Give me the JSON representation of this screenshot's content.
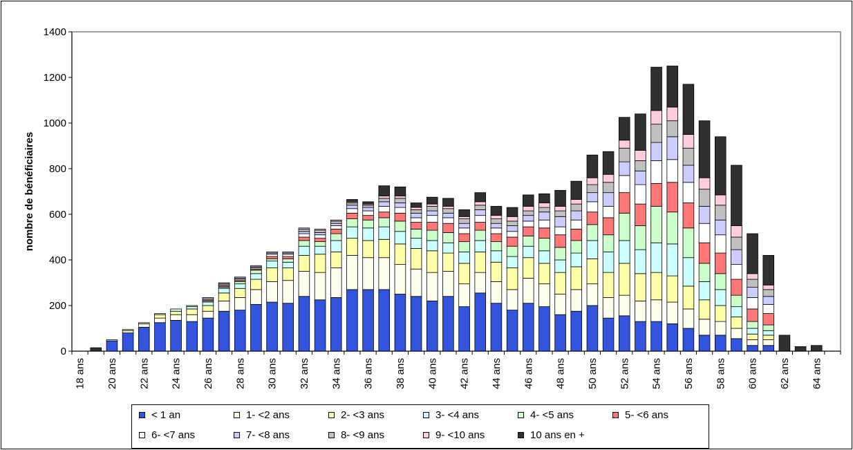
{
  "chart_data": {
    "type": "bar",
    "stacked": true,
    "title": "",
    "xlabel": "",
    "ylabel": "nombre de bénéficiaires",
    "ylim": [
      0,
      1400
    ],
    "yticks": [
      0,
      200,
      400,
      600,
      800,
      1000,
      1200,
      1400
    ],
    "grid": false,
    "legend_position": "bottom",
    "categories": [
      "18 ans",
      "19 ans",
      "20 ans",
      "21 ans",
      "22 ans",
      "23 ans",
      "24 ans",
      "25 ans",
      "26 ans",
      "27 ans",
      "28 ans",
      "29 ans",
      "30 ans",
      "31 ans",
      "32 ans",
      "33 ans",
      "34 ans",
      "35 ans",
      "36 ans",
      "37 ans",
      "38 ans",
      "39 ans",
      "40 ans",
      "41 ans",
      "42 ans",
      "43 ans",
      "44 ans",
      "45 ans",
      "46 ans",
      "47 ans",
      "48 ans",
      "49 ans",
      "50 ans",
      "51 ans",
      "52 ans",
      "53 ans",
      "54 ans",
      "55 ans",
      "56 ans",
      "57 ans",
      "58 ans",
      "59 ans",
      "60 ans",
      "61 ans",
      "62 ans",
      "63 ans",
      "64 ans",
      "65 ans"
    ],
    "tick_labels": [
      "18 ans",
      "",
      "20 ans",
      "",
      "22 ans",
      "",
      "24 ans",
      "",
      "26 ans",
      "",
      "28 ans",
      "",
      "30 ans",
      "",
      "32 ans",
      "",
      "34 ans",
      "",
      "36 ans",
      "",
      "38 ans",
      "",
      "40 ans",
      "",
      "42 ans",
      "",
      "44 ans",
      "",
      "46 ans",
      "",
      "48 ans",
      "",
      "50 ans",
      "",
      "52 ans",
      "",
      "54 ans",
      "",
      "56 ans",
      "",
      "58 ans",
      "",
      "60 ans",
      "",
      "62 ans",
      "",
      "64 ans",
      ""
    ],
    "series": [
      {
        "name": "< 1 an",
        "color": "#3355dd",
        "values": [
          0,
          0,
          45,
          80,
          105,
          125,
          135,
          130,
          145,
          175,
          180,
          205,
          215,
          210,
          240,
          225,
          235,
          270,
          270,
          270,
          250,
          240,
          220,
          240,
          195,
          255,
          210,
          180,
          210,
          195,
          160,
          175,
          200,
          145,
          155,
          130,
          130,
          120,
          100,
          70,
          70,
          55,
          25,
          25,
          0,
          0,
          0,
          0
        ]
      },
      {
        "name": "1- <2 ans",
        "color": "#ffffee",
        "values": [
          0,
          0,
          5,
          10,
          15,
          20,
          25,
          30,
          30,
          45,
          55,
          65,
          90,
          100,
          110,
          120,
          130,
          150,
          140,
          140,
          130,
          120,
          125,
          110,
          100,
          90,
          95,
          90,
          110,
          100,
          90,
          95,
          95,
          90,
          90,
          90,
          95,
          95,
          85,
          70,
          60,
          45,
          25,
          25,
          0,
          0,
          0,
          0
        ]
      },
      {
        "name": "2- <3 ans",
        "color": "#ffffaa",
        "values": [
          0,
          0,
          0,
          5,
          5,
          15,
          15,
          25,
          25,
          35,
          40,
          45,
          60,
          55,
          70,
          80,
          70,
          75,
          75,
          80,
          90,
          90,
          95,
          80,
          90,
          90,
          85,
          95,
          90,
          90,
          95,
          100,
          110,
          110,
          140,
          120,
          120,
          115,
          100,
          85,
          70,
          50,
          25,
          20,
          0,
          0,
          0,
          0
        ]
      },
      {
        "name": "3- <4 ans",
        "color": "#ccffff",
        "values": [
          0,
          0,
          0,
          0,
          0,
          5,
          10,
          10,
          15,
          20,
          20,
          25,
          30,
          25,
          40,
          35,
          50,
          50,
          55,
          55,
          55,
          45,
          45,
          45,
          50,
          50,
          50,
          50,
          50,
          55,
          55,
          60,
          80,
          90,
          100,
          105,
          130,
          140,
          125,
          80,
          70,
          45,
          25,
          20,
          0,
          0,
          0,
          0
        ]
      },
      {
        "name": "4- <5 ans",
        "color": "#ccffcc",
        "values": [
          0,
          0,
          0,
          0,
          0,
          0,
          0,
          5,
          5,
          5,
          10,
          15,
          10,
          15,
          25,
          20,
          30,
          35,
          35,
          40,
          45,
          40,
          45,
          45,
          45,
          45,
          40,
          45,
          45,
          55,
          55,
          55,
          70,
          75,
          120,
          105,
          160,
          140,
          130,
          80,
          70,
          50,
          30,
          25,
          0,
          0,
          0,
          0
        ]
      },
      {
        "name": "5- <6 ans",
        "color": "#ff7777",
        "values": [
          0,
          0,
          0,
          0,
          0,
          0,
          0,
          0,
          5,
          5,
          5,
          5,
          10,
          10,
          15,
          15,
          20,
          25,
          20,
          25,
          35,
          30,
          35,
          40,
          35,
          35,
          35,
          40,
          40,
          45,
          55,
          50,
          55,
          75,
          90,
          95,
          100,
          130,
          110,
          90,
          90,
          70,
          55,
          50,
          0,
          0,
          0,
          0
        ]
      },
      {
        "name": "6- <7 ans",
        "color": "#ffffff",
        "values": [
          0,
          0,
          0,
          0,
          0,
          0,
          0,
          0,
          5,
          5,
          5,
          5,
          10,
          10,
          15,
          15,
          15,
          20,
          20,
          25,
          25,
          20,
          30,
          25,
          25,
          30,
          25,
          25,
          25,
          35,
          35,
          40,
          45,
          50,
          75,
          85,
          100,
          100,
          90,
          85,
          80,
          65,
          50,
          40,
          0,
          0,
          0,
          0
        ]
      },
      {
        "name": "7- <8 ans",
        "color": "#ccccff",
        "values": [
          0,
          0,
          0,
          0,
          0,
          0,
          0,
          0,
          5,
          5,
          5,
          5,
          5,
          5,
          10,
          10,
          10,
          15,
          15,
          20,
          20,
          20,
          20,
          20,
          20,
          25,
          20,
          25,
          25,
          35,
          45,
          40,
          40,
          60,
          60,
          60,
          80,
          100,
          75,
          75,
          65,
          65,
          45,
          35,
          0,
          0,
          0,
          0
        ]
      },
      {
        "name": "8- <9 ans",
        "color": "#c0c0c0",
        "values": [
          0,
          0,
          0,
          0,
          0,
          0,
          0,
          0,
          0,
          5,
          5,
          5,
          5,
          5,
          10,
          10,
          10,
          10,
          10,
          15,
          20,
          15,
          20,
          20,
          20,
          20,
          20,
          20,
          20,
          20,
          25,
          30,
          35,
          45,
          60,
          45,
          80,
          70,
          75,
          75,
          65,
          55,
          35,
          30,
          0,
          0,
          0,
          0
        ]
      },
      {
        "name": "9- <10 ans",
        "color": "#ffccdd",
        "values": [
          0,
          0,
          0,
          0,
          0,
          0,
          0,
          0,
          0,
          0,
          0,
          0,
          0,
          0,
          5,
          5,
          5,
          5,
          5,
          10,
          10,
          10,
          10,
          10,
          10,
          15,
          15,
          20,
          20,
          20,
          20,
          20,
          30,
          35,
          35,
          45,
          60,
          60,
          60,
          50,
          45,
          50,
          25,
          20,
          0,
          0,
          0,
          0
        ]
      },
      {
        "name": "10 ans en +",
        "color": "#303030",
        "values": [
          0,
          15,
          0,
          0,
          0,
          0,
          0,
          0,
          0,
          0,
          0,
          0,
          0,
          0,
          0,
          0,
          0,
          10,
          10,
          45,
          40,
          20,
          30,
          35,
          30,
          40,
          40,
          40,
          50,
          40,
          70,
          80,
          100,
          100,
          100,
          160,
          190,
          180,
          220,
          250,
          255,
          265,
          175,
          130,
          70,
          20,
          25,
          0
        ]
      }
    ]
  }
}
